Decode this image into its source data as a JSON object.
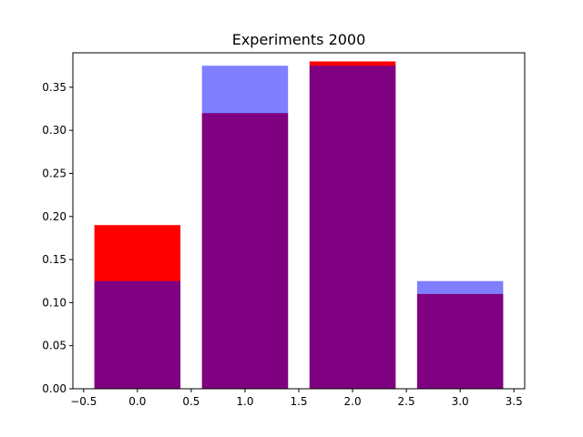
{
  "chart_data": {
    "type": "bar",
    "title": "Experiments 2000",
    "xlabel": "",
    "ylabel": "",
    "xlim": [
      -0.6,
      3.6
    ],
    "ylim": [
      0,
      0.39
    ],
    "bar_width": 0.8,
    "x": [
      0,
      1,
      2,
      3
    ],
    "series": [
      {
        "color": "#ff0000",
        "opacity": 1.0,
        "values": [
          0.19,
          0.32,
          0.38,
          0.11
        ]
      },
      {
        "color": "#0000ff",
        "opacity": 0.5,
        "values": [
          0.125,
          0.375,
          0.375,
          0.125
        ]
      }
    ],
    "x_ticks": [
      -0.5,
      0.0,
      0.5,
      1.0,
      1.5,
      2.0,
      2.5,
      3.0,
      3.5
    ],
    "x_tick_labels": [
      "−0.5",
      "0.0",
      "0.5",
      "1.0",
      "1.5",
      "2.0",
      "2.5",
      "3.0",
      "3.5"
    ],
    "y_ticks": [
      0.0,
      0.05,
      0.1,
      0.15,
      0.2,
      0.25,
      0.3,
      0.35
    ],
    "y_tick_labels": [
      "0.00",
      "0.05",
      "0.10",
      "0.15",
      "0.20",
      "0.25",
      "0.30",
      "0.35"
    ],
    "grid": false,
    "legend": "none"
  }
}
